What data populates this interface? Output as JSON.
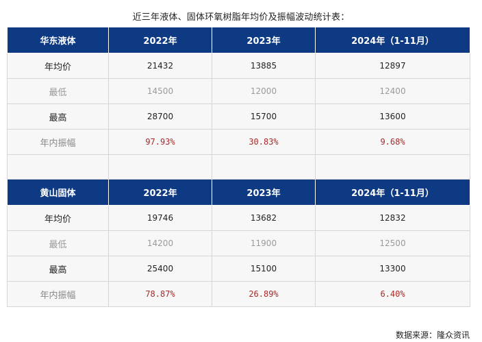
{
  "title": "近三年液体、固体环氧树脂年均价及振幅波动统计表：",
  "tables": [
    {
      "region": "华东液体",
      "headers": [
        "2022年",
        "2023年",
        "2024年（1-11月）"
      ],
      "rows": [
        {
          "label": "年均价",
          "values": [
            "21432",
            "13885",
            "12897"
          ]
        },
        {
          "label": "最低",
          "values": [
            "14500",
            "12000",
            "12400"
          ]
        },
        {
          "label": "最高",
          "values": [
            "28700",
            "15700",
            "13600"
          ]
        },
        {
          "label": "年内振幅",
          "values": [
            "97.93%",
            "30.83%",
            "9.68%"
          ]
        }
      ]
    },
    {
      "region": "黄山固体",
      "headers": [
        "2022年",
        "2023年",
        "2024年（1-11月）"
      ],
      "rows": [
        {
          "label": "年均价",
          "values": [
            "19746",
            "13682",
            "12832"
          ]
        },
        {
          "label": "最低",
          "values": [
            "14200",
            "11900",
            "12500"
          ]
        },
        {
          "label": "最高",
          "values": [
            "25400",
            "15100",
            "13300"
          ]
        },
        {
          "label": "年内振幅",
          "values": [
            "78.87%",
            "26.89%",
            "6.40%"
          ]
        }
      ]
    }
  ],
  "source": "数据来源：隆众资讯",
  "colors": {
    "header_bg": "#0d3a82",
    "header_text": "#ffffff",
    "row_bg": "#f7f7f7",
    "amplitude_text": "#a52a2a"
  }
}
